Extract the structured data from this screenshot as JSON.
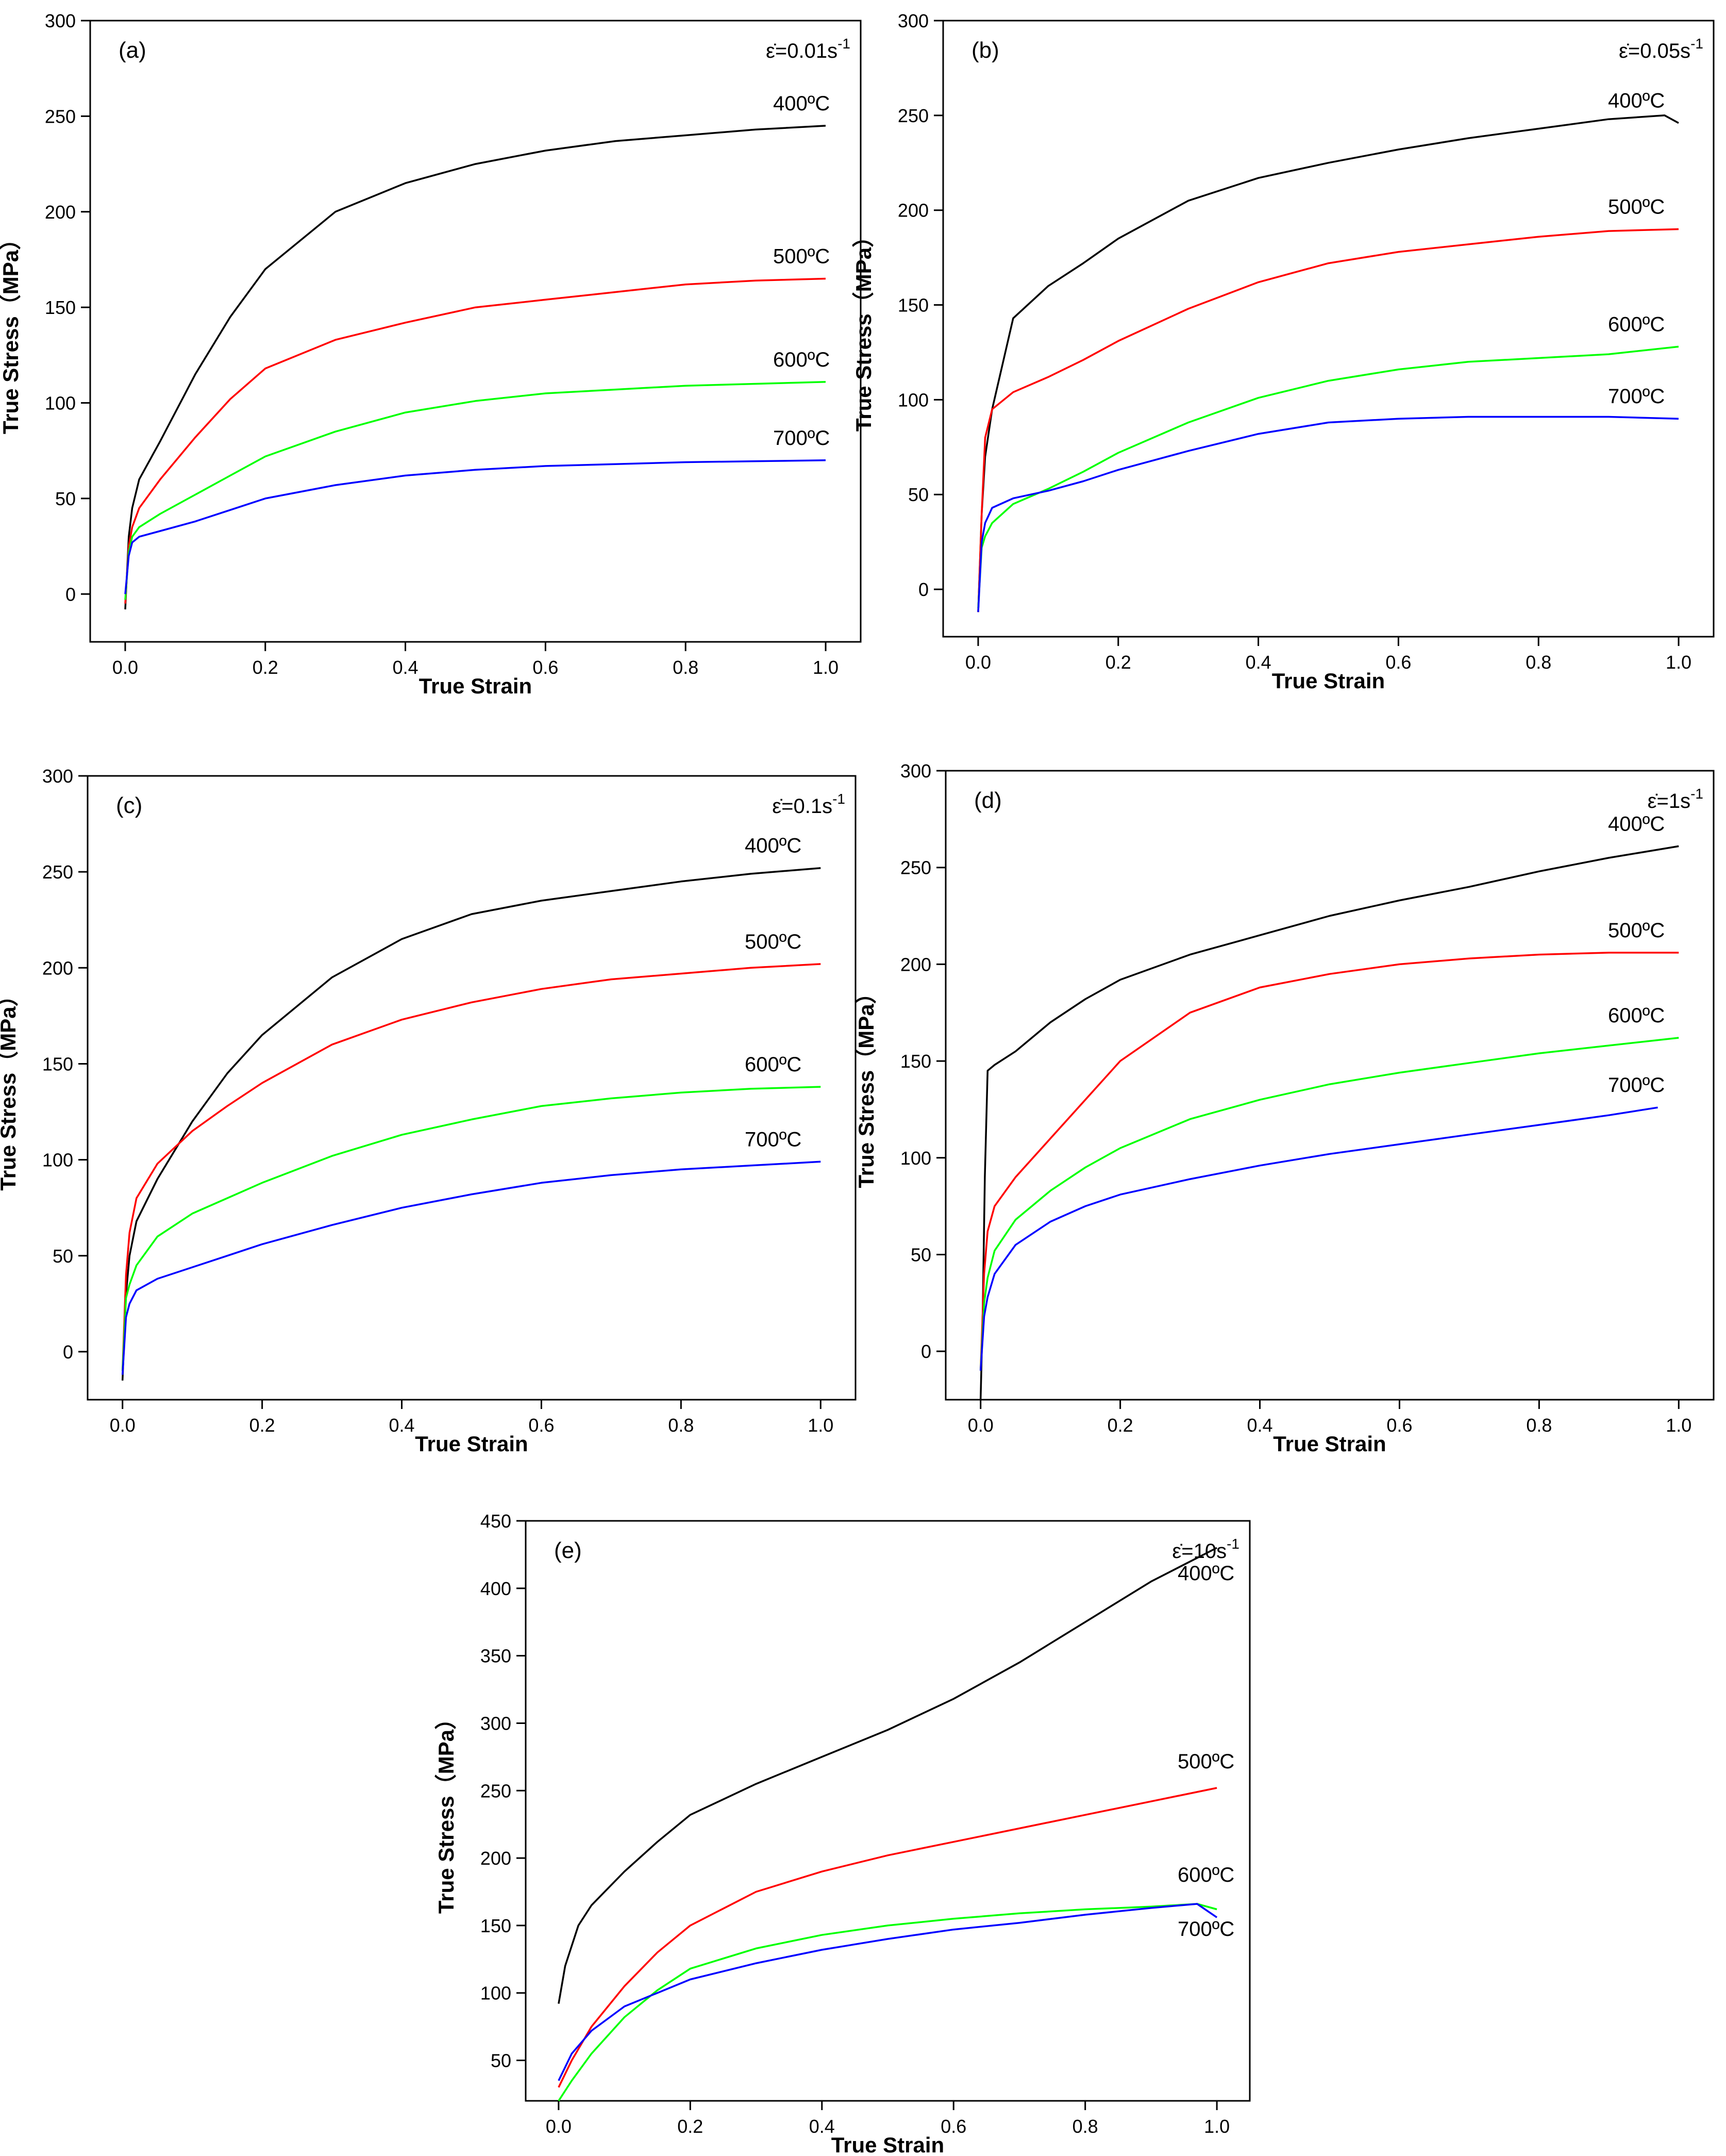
{
  "figure": {
    "x_axis_label": "True Strain",
    "y_axis_label": "True Stress（MPa）"
  },
  "chart_data": [
    {
      "type": "line",
      "panel_label": "(a)",
      "strain_rate": "ε̇=0.01s-1",
      "strain_rate_prefix": "ε̇=0.01s",
      "strain_rate_exp": "-1",
      "xlabel": "True Strain",
      "ylabel": "True Stress（MPa）",
      "xlim": [
        -0.05,
        1.05
      ],
      "ylim": [
        -25,
        300
      ],
      "xticks": [
        "0.0",
        "0.2",
        "0.4",
        "0.6",
        "0.8",
        "1.0"
      ],
      "yticks": [
        "0",
        "50",
        "100",
        "150",
        "200",
        "250",
        "300"
      ],
      "series": [
        {
          "name": "400ºC",
          "color": "#000000",
          "x": [
            0,
            0.005,
            0.01,
            0.02,
            0.05,
            0.1,
            0.15,
            0.2,
            0.3,
            0.4,
            0.5,
            0.6,
            0.7,
            0.8,
            0.9,
            1.0
          ],
          "y": [
            -8,
            30,
            45,
            60,
            80,
            115,
            145,
            170,
            200,
            215,
            225,
            232,
            237,
            240,
            243,
            245
          ]
        },
        {
          "name": "500ºC",
          "color": "#ff0000",
          "x": [
            0,
            0.005,
            0.01,
            0.02,
            0.05,
            0.1,
            0.15,
            0.2,
            0.3,
            0.4,
            0.5,
            0.6,
            0.7,
            0.8,
            0.9,
            1.0
          ],
          "y": [
            -5,
            25,
            35,
            45,
            60,
            82,
            102,
            118,
            133,
            142,
            150,
            154,
            158,
            162,
            164,
            165
          ]
        },
        {
          "name": "600ºC",
          "color": "#00ff00",
          "x": [
            0,
            0.005,
            0.01,
            0.02,
            0.05,
            0.1,
            0.15,
            0.2,
            0.3,
            0.4,
            0.5,
            0.6,
            0.7,
            0.8,
            0.9,
            1.0
          ],
          "y": [
            -3,
            22,
            30,
            35,
            42,
            52,
            62,
            72,
            85,
            95,
            101,
            105,
            107,
            109,
            110,
            111
          ]
        },
        {
          "name": "700ºC",
          "color": "#0000ff",
          "x": [
            0,
            0.005,
            0.01,
            0.02,
            0.05,
            0.1,
            0.15,
            0.2,
            0.3,
            0.4,
            0.5,
            0.6,
            0.7,
            0.8,
            0.9,
            1.0
          ],
          "y": [
            0,
            20,
            27,
            30,
            33,
            38,
            44,
            50,
            57,
            62,
            65,
            67,
            68,
            69,
            69.5,
            70
          ]
        }
      ]
    },
    {
      "type": "line",
      "panel_label": "(b)",
      "strain_rate": "ε̇=0.05s-1",
      "strain_rate_prefix": "ε̇=0.05s",
      "strain_rate_exp": "-1",
      "xlabel": "True Strain",
      "ylabel": "True Stress（MPa）",
      "xlim": [
        -0.05,
        1.05
      ],
      "ylim": [
        -25,
        300
      ],
      "xticks": [
        "0.0",
        "0.2",
        "0.4",
        "0.6",
        "0.8",
        "1.0"
      ],
      "yticks": [
        "0",
        "50",
        "100",
        "150",
        "200",
        "250",
        "300"
      ],
      "series": [
        {
          "name": "400ºC",
          "color": "#000000",
          "x": [
            0,
            0.005,
            0.01,
            0.02,
            0.05,
            0.1,
            0.15,
            0.2,
            0.3,
            0.4,
            0.5,
            0.6,
            0.7,
            0.8,
            0.9,
            0.98,
            1.0
          ],
          "y": [
            -12,
            40,
            70,
            95,
            143,
            160,
            172,
            185,
            205,
            217,
            225,
            232,
            238,
            243,
            248,
            250,
            246
          ]
        },
        {
          "name": "500ºC",
          "color": "#ff0000",
          "x": [
            0,
            0.005,
            0.01,
            0.02,
            0.05,
            0.1,
            0.15,
            0.2,
            0.3,
            0.4,
            0.5,
            0.6,
            0.7,
            0.8,
            0.9,
            1.0
          ],
          "y": [
            -12,
            40,
            80,
            95,
            104,
            112,
            121,
            131,
            148,
            162,
            172,
            178,
            182,
            186,
            189,
            190
          ]
        },
        {
          "name": "600ºC",
          "color": "#00ff00",
          "x": [
            0,
            0.005,
            0.01,
            0.02,
            0.05,
            0.1,
            0.15,
            0.2,
            0.3,
            0.4,
            0.5,
            0.6,
            0.7,
            0.8,
            0.9,
            1.0
          ],
          "y": [
            -10,
            22,
            28,
            35,
            45,
            53,
            62,
            72,
            88,
            101,
            110,
            116,
            120,
            122,
            124,
            128
          ]
        },
        {
          "name": "700ºC",
          "color": "#0000ff",
          "x": [
            0,
            0.005,
            0.01,
            0.02,
            0.05,
            0.1,
            0.15,
            0.2,
            0.3,
            0.4,
            0.5,
            0.6,
            0.7,
            0.8,
            0.9,
            1.0
          ],
          "y": [
            -12,
            25,
            35,
            43,
            48,
            52,
            57,
            63,
            73,
            82,
            88,
            90,
            91,
            91,
            91,
            90
          ]
        }
      ]
    },
    {
      "type": "line",
      "panel_label": "(c)",
      "strain_rate": "ε̇=0.1s-1",
      "strain_rate_prefix": "ε̇=0.1s",
      "strain_rate_exp": "-1",
      "xlabel": "True Strain",
      "ylabel": "True Stress（MPa）",
      "xlim": [
        -0.05,
        1.05
      ],
      "ylim": [
        -25,
        300
      ],
      "xticks": [
        "0.0",
        "0.2",
        "0.4",
        "0.6",
        "0.8",
        "1.0"
      ],
      "yticks": [
        "0",
        "50",
        "100",
        "150",
        "200",
        "250",
        "300"
      ],
      "series": [
        {
          "name": "400ºC",
          "color": "#000000",
          "x": [
            0,
            0.005,
            0.01,
            0.02,
            0.05,
            0.1,
            0.15,
            0.2,
            0.3,
            0.4,
            0.5,
            0.6,
            0.7,
            0.8,
            0.9,
            1.0
          ],
          "y": [
            -15,
            30,
            50,
            68,
            90,
            120,
            145,
            165,
            195,
            215,
            228,
            235,
            240,
            245,
            249,
            252
          ]
        },
        {
          "name": "500ºC",
          "color": "#ff0000",
          "x": [
            0,
            0.005,
            0.01,
            0.02,
            0.05,
            0.1,
            0.15,
            0.2,
            0.3,
            0.4,
            0.5,
            0.6,
            0.7,
            0.8,
            0.9,
            1.0
          ],
          "y": [
            -10,
            40,
            62,
            80,
            98,
            115,
            128,
            140,
            160,
            173,
            182,
            189,
            194,
            197,
            200,
            202
          ]
        },
        {
          "name": "600ºC",
          "color": "#00ff00",
          "x": [
            0,
            0.005,
            0.01,
            0.02,
            0.05,
            0.1,
            0.15,
            0.2,
            0.3,
            0.4,
            0.5,
            0.6,
            0.7,
            0.8,
            0.9,
            1.0
          ],
          "y": [
            -10,
            28,
            35,
            45,
            60,
            72,
            80,
            88,
            102,
            113,
            121,
            128,
            132,
            135,
            137,
            138
          ]
        },
        {
          "name": "700ºC",
          "color": "#0000ff",
          "x": [
            0,
            0.005,
            0.01,
            0.02,
            0.05,
            0.1,
            0.15,
            0.2,
            0.3,
            0.4,
            0.5,
            0.6,
            0.7,
            0.8,
            0.9,
            1.0
          ],
          "y": [
            -12,
            18,
            25,
            32,
            38,
            44,
            50,
            56,
            66,
            75,
            82,
            88,
            92,
            95,
            97,
            99
          ]
        }
      ]
    },
    {
      "type": "line",
      "panel_label": "(d)",
      "strain_rate": "ε̇=1s-1",
      "strain_rate_prefix": "ε̇=1s",
      "strain_rate_exp": "-1",
      "xlabel": "True Strain",
      "ylabel": "True Stress（MPa）",
      "xlim": [
        -0.05,
        1.05
      ],
      "ylim": [
        -25,
        300
      ],
      "xticks": [
        "0.0",
        "0.2",
        "0.4",
        "0.6",
        "0.8",
        "1.0"
      ],
      "yticks": [
        "0",
        "50",
        "100",
        "150",
        "200",
        "250",
        "300"
      ],
      "series": [
        {
          "name": "400ºC",
          "color": "#000000",
          "x": [
            0,
            0.003,
            0.006,
            0.01,
            0.02,
            0.05,
            0.1,
            0.15,
            0.2,
            0.3,
            0.4,
            0.5,
            0.6,
            0.7,
            0.8,
            0.9,
            1.0
          ],
          "y": [
            -25,
            20,
            90,
            145,
            148,
            155,
            170,
            182,
            192,
            205,
            215,
            225,
            233,
            240,
            248,
            255,
            261
          ]
        },
        {
          "name": "500ºC",
          "color": "#ff0000",
          "x": [
            0,
            0.005,
            0.01,
            0.02,
            0.05,
            0.1,
            0.15,
            0.2,
            0.3,
            0.4,
            0.5,
            0.6,
            0.7,
            0.8,
            0.9,
            1.0
          ],
          "y": [
            -10,
            40,
            62,
            75,
            90,
            110,
            130,
            150,
            175,
            188,
            195,
            200,
            203,
            205,
            206,
            206
          ]
        },
        {
          "name": "600ºC",
          "color": "#00ff00",
          "x": [
            0,
            0.005,
            0.01,
            0.02,
            0.05,
            0.1,
            0.15,
            0.2,
            0.3,
            0.4,
            0.5,
            0.6,
            0.7,
            0.8,
            0.9,
            1.0
          ],
          "y": [
            -10,
            25,
            38,
            52,
            68,
            83,
            95,
            105,
            120,
            130,
            138,
            144,
            149,
            154,
            158,
            162
          ]
        },
        {
          "name": "700ºC",
          "color": "#0000ff",
          "x": [
            0,
            0.005,
            0.01,
            0.02,
            0.05,
            0.1,
            0.15,
            0.2,
            0.3,
            0.4,
            0.5,
            0.6,
            0.7,
            0.8,
            0.9,
            0.97
          ],
          "y": [
            -10,
            18,
            28,
            40,
            55,
            67,
            75,
            81,
            89,
            96,
            102,
            107,
            112,
            117,
            122,
            126
          ]
        }
      ]
    },
    {
      "type": "line",
      "panel_label": "(e)",
      "strain_rate": "ε̇=10s-1",
      "strain_rate_prefix": "ε̇=10s",
      "strain_rate_exp": "-1",
      "xlabel": "True Strain",
      "ylabel": "True Stress（MPa）",
      "xlim": [
        -0.05,
        1.05
      ],
      "ylim": [
        20,
        450
      ],
      "xticks": [
        "0.0",
        "0.2",
        "0.4",
        "0.6",
        "0.8",
        "1.0"
      ],
      "yticks": [
        "50",
        "100",
        "150",
        "200",
        "250",
        "300",
        "350",
        "400",
        "450"
      ],
      "series": [
        {
          "name": "400ºC",
          "color": "#000000",
          "x": [
            0,
            0.01,
            0.03,
            0.05,
            0.1,
            0.15,
            0.2,
            0.3,
            0.4,
            0.5,
            0.6,
            0.7,
            0.8,
            0.9,
            1.0
          ],
          "y": [
            92,
            120,
            150,
            165,
            190,
            212,
            232,
            255,
            275,
            295,
            318,
            345,
            375,
            405,
            430
          ]
        },
        {
          "name": "500ºC",
          "color": "#ff0000",
          "x": [
            0,
            0.02,
            0.05,
            0.1,
            0.15,
            0.2,
            0.3,
            0.4,
            0.5,
            0.6,
            0.7,
            0.8,
            0.9,
            1.0
          ],
          "y": [
            30,
            50,
            75,
            105,
            130,
            150,
            175,
            190,
            202,
            212,
            222,
            232,
            242,
            252
          ]
        },
        {
          "name": "600ºC",
          "color": "#00ff00",
          "x": [
            0,
            0.02,
            0.05,
            0.1,
            0.15,
            0.2,
            0.3,
            0.4,
            0.5,
            0.6,
            0.7,
            0.8,
            0.9,
            0.97,
            1.0
          ],
          "y": [
            20,
            35,
            55,
            82,
            102,
            118,
            133,
            143,
            150,
            155,
            159,
            162,
            164,
            166,
            162
          ]
        },
        {
          "name": "700ºC",
          "color": "#0000ff",
          "x": [
            0,
            0.02,
            0.05,
            0.1,
            0.15,
            0.2,
            0.3,
            0.4,
            0.5,
            0.6,
            0.7,
            0.8,
            0.9,
            0.97,
            1.0
          ],
          "y": [
            35,
            55,
            72,
            90,
            100,
            110,
            122,
            132,
            140,
            147,
            152,
            158,
            163,
            166,
            156
          ]
        }
      ]
    }
  ]
}
